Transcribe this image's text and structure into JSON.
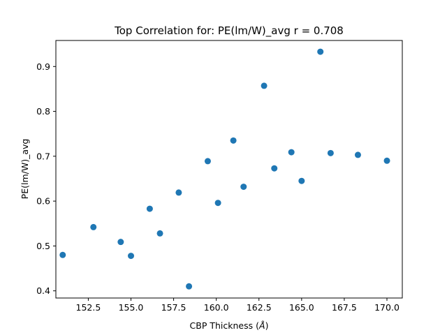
{
  "chart_data": {
    "type": "scatter",
    "title": "Top Correlation for: PE(lm/W)_avg r = 0.708",
    "xlabel_prefix": "CBP Thickness (",
    "xlabel_unit": "Å",
    "xlabel_suffix": ")",
    "ylabel": "PE(lm/W)_avg",
    "xlim": [
      150.6,
      170.9
    ],
    "ylim": [
      0.384,
      0.958
    ],
    "xticks": [
      152.5,
      155.0,
      157.5,
      160.0,
      162.5,
      165.0,
      167.5,
      170.0
    ],
    "xtick_labels": [
      "152.5",
      "155.0",
      "157.5",
      "160.0",
      "162.5",
      "165.0",
      "167.5",
      "170.0"
    ],
    "yticks": [
      0.4,
      0.5,
      0.6,
      0.7,
      0.8,
      0.9
    ],
    "ytick_labels": [
      "0.4",
      "0.5",
      "0.6",
      "0.7",
      "0.8",
      "0.9"
    ],
    "grid": false,
    "marker_color": "#1f77b4",
    "points": [
      {
        "x": 151.0,
        "y": 0.48
      },
      {
        "x": 152.8,
        "y": 0.542
      },
      {
        "x": 154.4,
        "y": 0.509
      },
      {
        "x": 155.0,
        "y": 0.478
      },
      {
        "x": 156.1,
        "y": 0.583
      },
      {
        "x": 156.7,
        "y": 0.528
      },
      {
        "x": 157.8,
        "y": 0.619
      },
      {
        "x": 158.4,
        "y": 0.41
      },
      {
        "x": 159.5,
        "y": 0.689
      },
      {
        "x": 160.1,
        "y": 0.596
      },
      {
        "x": 161.0,
        "y": 0.735
      },
      {
        "x": 161.6,
        "y": 0.632
      },
      {
        "x": 162.8,
        "y": 0.857
      },
      {
        "x": 163.4,
        "y": 0.673
      },
      {
        "x": 164.4,
        "y": 0.709
      },
      {
        "x": 165.0,
        "y": 0.645
      },
      {
        "x": 166.1,
        "y": 0.933
      },
      {
        "x": 166.7,
        "y": 0.707
      },
      {
        "x": 168.3,
        "y": 0.703
      },
      {
        "x": 170.0,
        "y": 0.69
      }
    ]
  }
}
